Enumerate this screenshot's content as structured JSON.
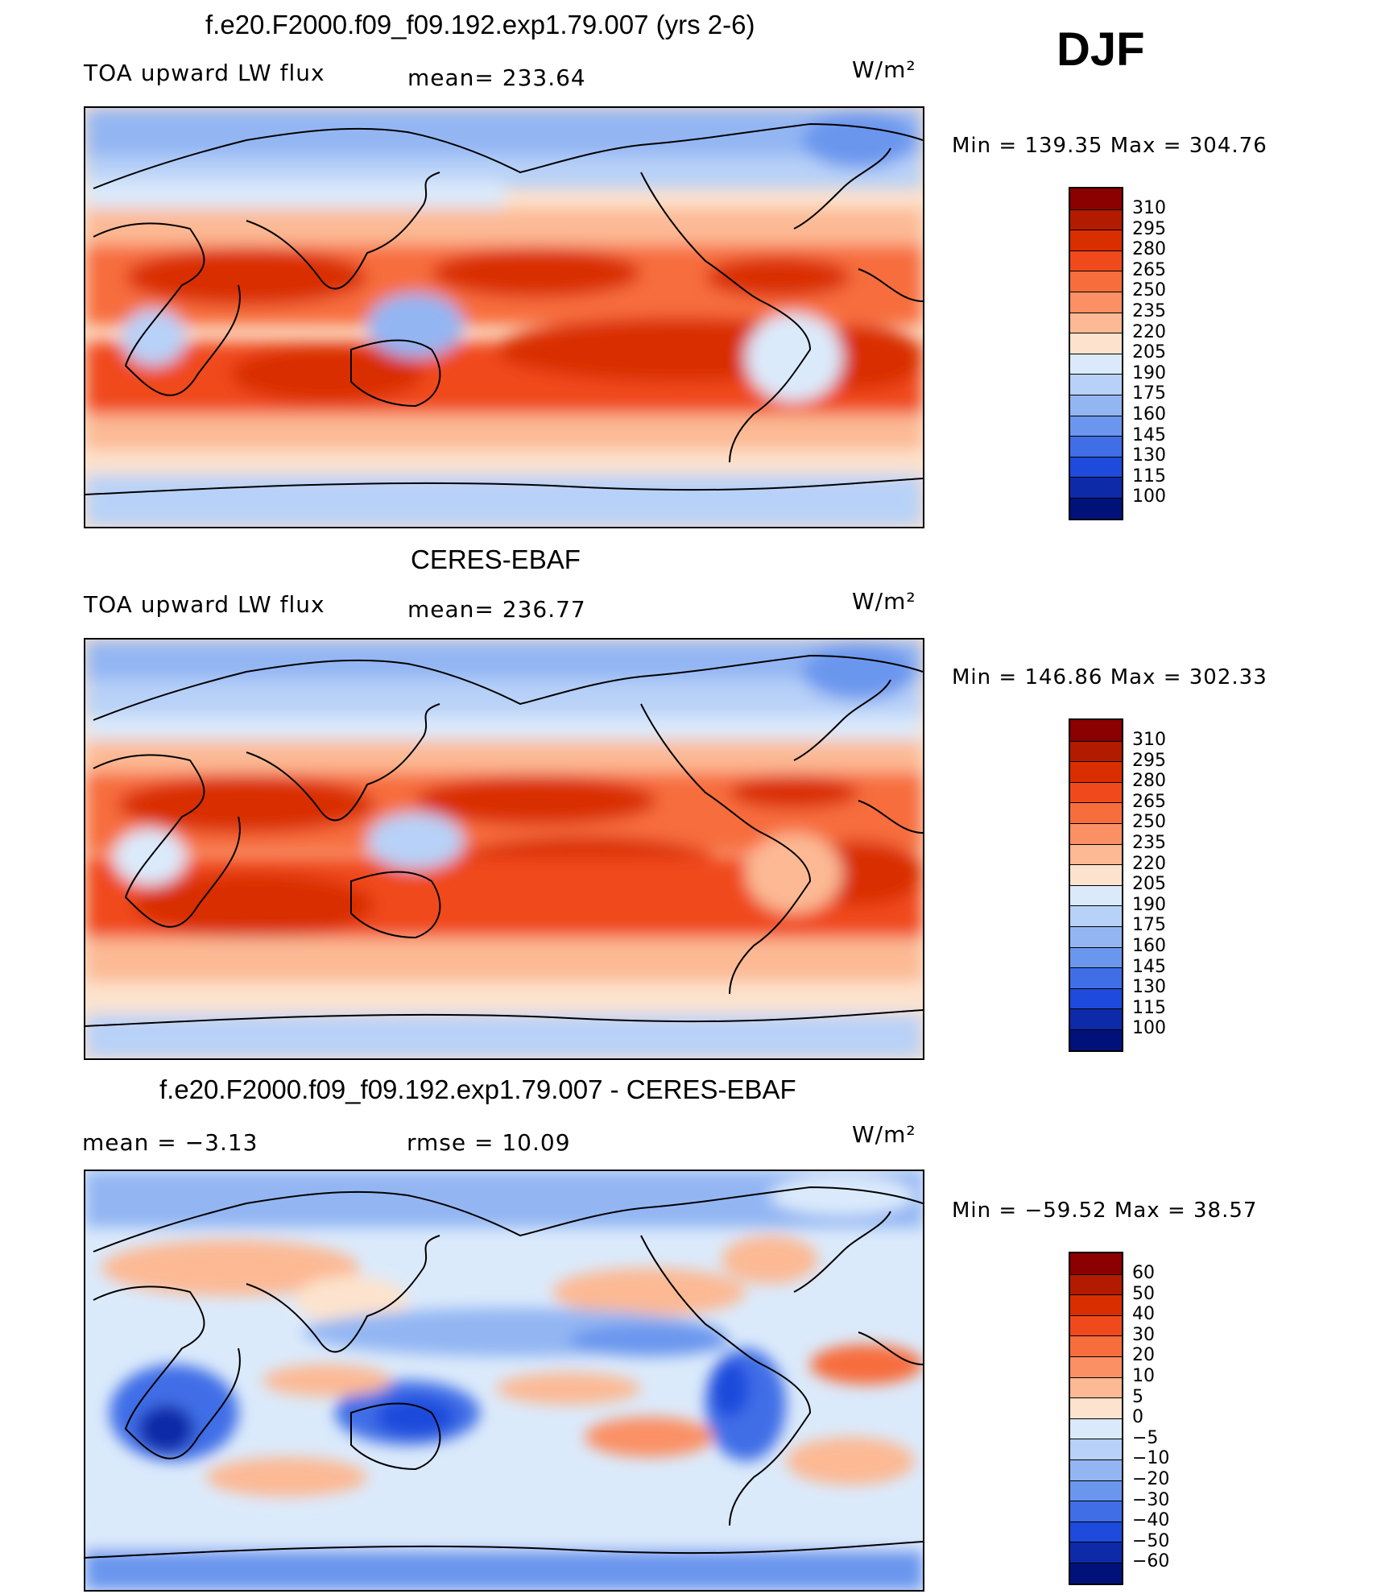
{
  "header": {
    "season": "DJF"
  },
  "panels": [
    {
      "id": "model",
      "title": "f.e20.F2000.f09_f09.192.exp1.79.007 (yrs 2-6)",
      "left_label": "TOA upward LW flux",
      "center_label": "mean=  233.64",
      "units": "W/m²",
      "minmax": "Min  =  139.35  Max  =  304.76",
      "colorbar": {
        "labels": [
          "310",
          "295",
          "280",
          "265",
          "250",
          "235",
          "220",
          "205",
          "190",
          "175",
          "160",
          "145",
          "130",
          "115",
          "100"
        ],
        "colors": [
          "#8b0000",
          "#b31b00",
          "#d92e00",
          "#f04a1c",
          "#f76d3c",
          "#fb9065",
          "#fcb994",
          "#fde3cd",
          "#dbeafb",
          "#b8d1f8",
          "#93b6f3",
          "#6b96ee",
          "#3f6ee7",
          "#1e4bdc",
          "#0d2aa8",
          "#00127a"
        ]
      }
    },
    {
      "id": "obs",
      "title": "CERES-EBAF",
      "left_label": "TOA upward LW flux",
      "center_label": "mean=  236.77",
      "units": "W/m²",
      "minmax": "Min  =  146.86  Max  =  302.33",
      "colorbar": {
        "labels": [
          "310",
          "295",
          "280",
          "265",
          "250",
          "235",
          "220",
          "205",
          "190",
          "175",
          "160",
          "145",
          "130",
          "115",
          "100"
        ],
        "colors": [
          "#8b0000",
          "#b31b00",
          "#d92e00",
          "#f04a1c",
          "#f76d3c",
          "#fb9065",
          "#fcb994",
          "#fde3cd",
          "#dbeafb",
          "#b8d1f8",
          "#93b6f3",
          "#6b96ee",
          "#3f6ee7",
          "#1e4bdc",
          "#0d2aa8",
          "#00127a"
        ]
      }
    },
    {
      "id": "diff",
      "title": "f.e20.F2000.f09_f09.192.exp1.79.007 - CERES-EBAF",
      "left_label": "mean  =    −3.13",
      "center_label": "rmse  =    10.09",
      "units": "W/m²",
      "minmax": "Min  =  −59.52  Max  =    38.57",
      "colorbar": {
        "labels": [
          "60",
          "50",
          "40",
          "30",
          "20",
          "10",
          "5",
          "0",
          "−5",
          "−10",
          "−20",
          "−30",
          "−40",
          "−50",
          "−60"
        ],
        "colors": [
          "#8b0000",
          "#b31b00",
          "#d92e00",
          "#f04a1c",
          "#f76d3c",
          "#fb9065",
          "#fcb994",
          "#fde3cd",
          "#dbeafb",
          "#b8d1f8",
          "#93b6f3",
          "#6b96ee",
          "#3f6ee7",
          "#1e4bdc",
          "#0d2aa8",
          "#00127a"
        ]
      }
    }
  ]
}
